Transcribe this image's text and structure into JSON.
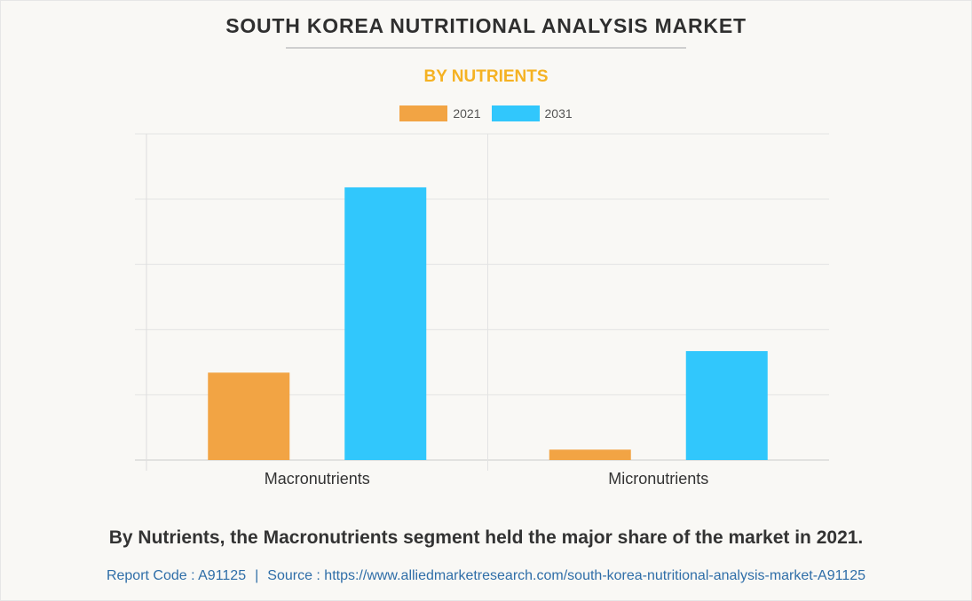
{
  "header": {
    "title": "SOUTH KOREA NUTRITIONAL ANALYSIS MARKET",
    "subtitle": "BY NUTRIENTS"
  },
  "legend": [
    {
      "label": "2021",
      "color": "#f2a444"
    },
    {
      "label": "2031",
      "color": "#31c7fc"
    }
  ],
  "chart_data": {
    "type": "bar",
    "categories": [
      "Macronutrients",
      "Micronutrients"
    ],
    "series": [
      {
        "name": "2021",
        "values": [
          134,
          16
        ],
        "color": "#f2a444"
      },
      {
        "name": "2031",
        "values": [
          418,
          167
        ],
        "color": "#31c7fc"
      }
    ],
    "ylim": [
      0,
      500
    ],
    "grid": true,
    "legend_position": "top-center"
  },
  "caption": "By Nutrients, the Macronutrients segment held the major share of the market in 2021.",
  "footer": {
    "report_code": "Report Code : A91125",
    "separator": "|",
    "source": "Source : https://www.alliedmarketresearch.com/south-korea-nutritional-analysis-market-A91125"
  }
}
